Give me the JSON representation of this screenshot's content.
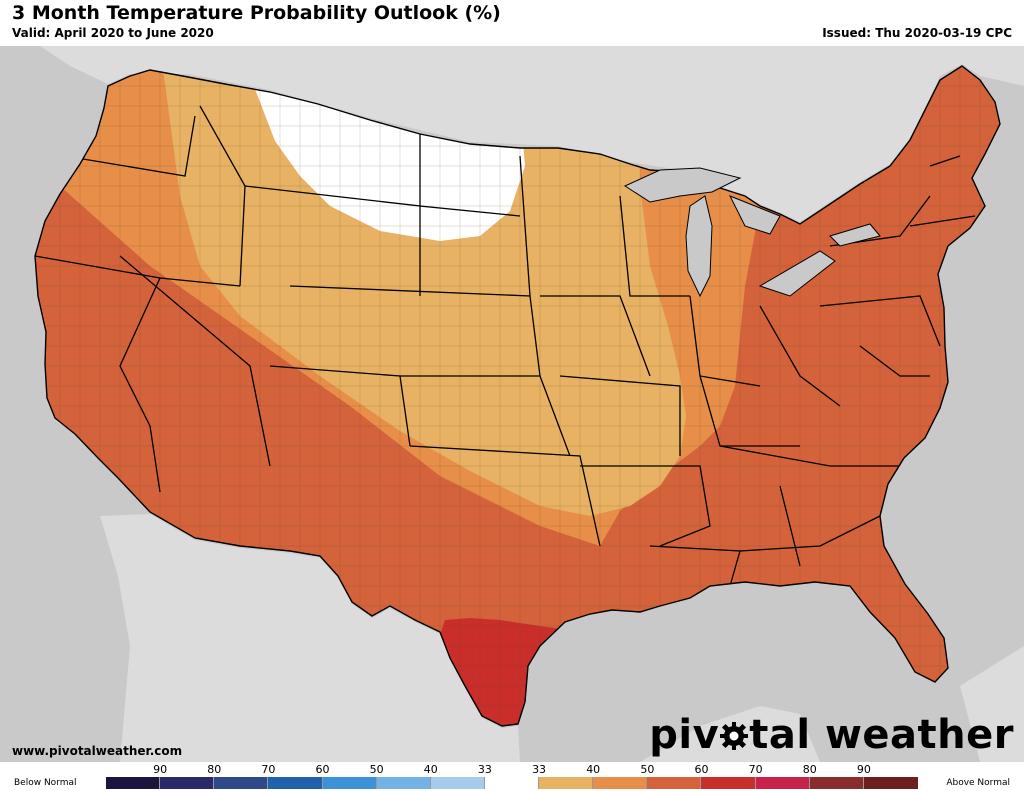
{
  "header": {
    "title": "3 Month Temperature Probability Outlook (%)",
    "valid": "Valid: April 2020 to June 2020",
    "issued": "Issued: Thu 2020-03-19 CPC"
  },
  "footer": {
    "website": "www.pivotalweather.com",
    "brand_left": "piv",
    "brand_right": "tal weather"
  },
  "legend": {
    "below_label": "Below Normal",
    "above_label": "Above Normal",
    "tick_labels": [
      "90",
      "80",
      "70",
      "60",
      "50",
      "40",
      "33",
      "33",
      "40",
      "50",
      "60",
      "70",
      "80",
      "90"
    ],
    "colors": [
      "#1c1540",
      "#2a2a6a",
      "#2f4a8a",
      "#1f62ab",
      "#3b92d8",
      "#72b3e6",
      "#a9cbeb",
      "#ffffff",
      "#e8b264",
      "#e78f49",
      "#d4623a",
      "#c92e2a",
      "#c8214a",
      "#8a2c2c",
      "#6b1f1f"
    ]
  },
  "map": {
    "colors": {
      "ocean": "#c9c9c9",
      "land_outside": "#dcdcdc",
      "white_zone": "#ffffff",
      "light_orange": "#e8b264",
      "medium_orange": "#e78f49",
      "dark_orange": "#d4623a",
      "red": "#c92e2a"
    },
    "categories": [
      {
        "category": "33",
        "color": "white_zone"
      },
      {
        "category": "40",
        "color": "light_orange"
      },
      {
        "category": "50",
        "color": "medium_orange"
      },
      {
        "category": "60",
        "color": "dark_orange"
      },
      {
        "category": "70",
        "color": "red"
      }
    ]
  }
}
